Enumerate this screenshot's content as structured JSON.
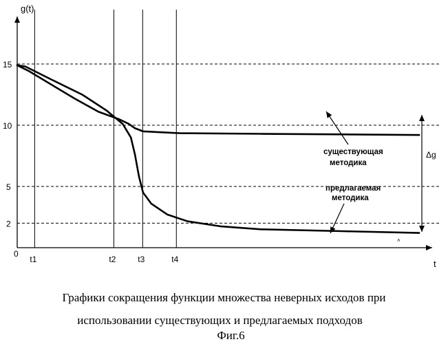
{
  "chart_data": {
    "type": "line",
    "title": "",
    "xlabel": "t",
    "ylabel": "g(t)",
    "origin_label": "0",
    "yticks": [
      2,
      5,
      10,
      15
    ],
    "ylim": [
      0,
      18.5
    ],
    "xlim": [
      0,
      1
    ],
    "x_markers": [
      {
        "label": "t1",
        "x": 0.043
      },
      {
        "label": "t2",
        "x": 0.238
      },
      {
        "label": "t3",
        "x": 0.309
      },
      {
        "label": "t4",
        "x": 0.392
      }
    ],
    "hlines": [
      2,
      5,
      10,
      15
    ],
    "series": [
      {
        "name": "существующая методика",
        "points": [
          [
            0,
            14.9
          ],
          [
            0.03,
            14.4
          ],
          [
            0.08,
            13.4
          ],
          [
            0.14,
            12.2
          ],
          [
            0.2,
            11.1
          ],
          [
            0.25,
            10.5
          ],
          [
            0.275,
            10.1
          ],
          [
            0.29,
            9.75
          ],
          [
            0.31,
            9.5
          ],
          [
            0.4,
            9.35
          ],
          [
            0.6,
            9.3
          ],
          [
            0.8,
            9.25
          ],
          [
            0.99,
            9.2
          ]
        ]
      },
      {
        "name": "предлагаемая методика",
        "points": [
          [
            0,
            14.9
          ],
          [
            0.02,
            14.8
          ],
          [
            0.08,
            13.8
          ],
          [
            0.16,
            12.5
          ],
          [
            0.22,
            11.2
          ],
          [
            0.26,
            10.1
          ],
          [
            0.28,
            9.0
          ],
          [
            0.29,
            7.6
          ],
          [
            0.3,
            5.8
          ],
          [
            0.31,
            4.5
          ],
          [
            0.33,
            3.6
          ],
          [
            0.37,
            2.7
          ],
          [
            0.42,
            2.15
          ],
          [
            0.5,
            1.75
          ],
          [
            0.6,
            1.5
          ],
          [
            0.8,
            1.35
          ],
          [
            0.99,
            1.2
          ]
        ]
      }
    ],
    "annotations": {
      "existing_label": [
        "существующая",
        "методика"
      ],
      "proposed_label": [
        "предлагаемая",
        "методика"
      ],
      "delta_label": "Δg"
    },
    "grid": false,
    "legend": "none"
  },
  "caption": {
    "line1": "Графики сокращения функции множества неверных исходов при",
    "line2": "использовании существующих и предлагаемых подходов",
    "figure": "Фиг.6"
  }
}
